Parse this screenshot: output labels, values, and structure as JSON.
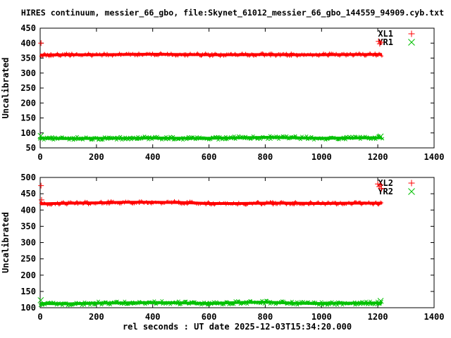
{
  "title": "HIRES continuum, messier_66_gbo, file:Skynet_61012_messier_66_gbo_144559_94909.cyb.txt",
  "colors": {
    "red": "#ff0000",
    "green": "#00c000",
    "frame": "#000000",
    "background": "#ffffff"
  },
  "chart_data": [
    {
      "type": "scatter",
      "panel": "top",
      "ylabel": "Uncalibrated",
      "xlim": [
        0,
        1400
      ],
      "ylim": [
        50,
        450
      ],
      "xticks": [
        0,
        200,
        400,
        600,
        800,
        1000,
        1200,
        1400
      ],
      "yticks": [
        50,
        100,
        150,
        200,
        250,
        300,
        350,
        400,
        450
      ],
      "legend_position": "top-right",
      "grid": false,
      "series": [
        {
          "name": "XL1",
          "marker": "plus",
          "color": "#ff0000",
          "band_halfwidth": 6,
          "x": [
            0,
            100,
            200,
            300,
            400,
            500,
            600,
            700,
            800,
            900,
            1000,
            1100,
            1215
          ],
          "y": [
            360,
            361,
            361,
            362,
            363,
            362,
            361,
            361,
            362,
            361,
            361,
            362,
            362
          ],
          "outliers": [
            [
              3,
              400
            ],
            [
              1203,
              406
            ],
            [
              1207,
              398
            ],
            [
              1212,
              403
            ]
          ]
        },
        {
          "name": "YR1",
          "marker": "cross",
          "color": "#00c000",
          "band_halfwidth": 6,
          "x": [
            0,
            100,
            200,
            300,
            400,
            500,
            600,
            700,
            800,
            900,
            1000,
            1100,
            1215
          ],
          "y": [
            82,
            81,
            82,
            82,
            83,
            82,
            82,
            84,
            85,
            84,
            82,
            83,
            84
          ],
          "outliers": [
            [
              2,
              90
            ],
            [
              1210,
              88
            ]
          ]
        }
      ]
    },
    {
      "type": "scatter",
      "panel": "bottom",
      "ylabel": "Uncalibrated",
      "xlabel": "rel seconds : UT date 2025-12-03T15:34:20.000",
      "xlim": [
        0,
        1400
      ],
      "ylim": [
        100,
        500
      ],
      "xticks": [
        0,
        200,
        400,
        600,
        800,
        1000,
        1200,
        1400
      ],
      "yticks": [
        100,
        150,
        200,
        250,
        300,
        350,
        400,
        450,
        500
      ],
      "legend_position": "top-right",
      "grid": false,
      "series": [
        {
          "name": "XL2",
          "marker": "plus",
          "color": "#ff0000",
          "band_halfwidth": 7,
          "x": [
            0,
            100,
            200,
            300,
            400,
            500,
            600,
            700,
            800,
            900,
            1000,
            1100,
            1215
          ],
          "y": [
            419,
            421,
            422,
            424,
            424,
            423,
            420,
            420,
            421,
            421,
            420,
            421,
            421
          ],
          "outliers": [
            [
              3,
              475
            ],
            [
              5,
              431
            ],
            [
              1200,
              480
            ],
            [
              1205,
              472
            ],
            [
              1210,
              477
            ],
            [
              1213,
              466
            ]
          ]
        },
        {
          "name": "YR2",
          "marker": "cross",
          "color": "#00c000",
          "band_halfwidth": 7,
          "x": [
            0,
            100,
            200,
            300,
            400,
            500,
            600,
            700,
            800,
            900,
            1000,
            1100,
            1215
          ],
          "y": [
            113,
            112,
            114,
            115,
            116,
            115,
            113,
            116,
            117,
            114,
            113,
            114,
            115
          ],
          "outliers": [
            [
              2,
              123
            ],
            [
              1210,
              121
            ]
          ]
        }
      ]
    }
  ]
}
